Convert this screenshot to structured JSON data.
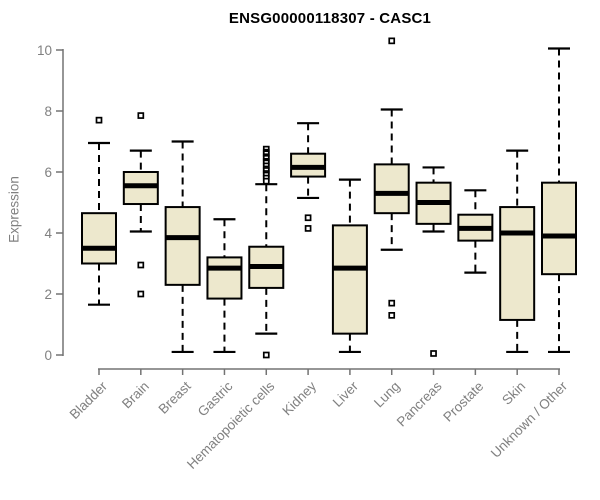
{
  "chart_data": {
    "type": "boxplot",
    "title": "ENSG00000118307 - CASC1",
    "ylabel": "Expression",
    "xlabel": "",
    "ylim": [
      0,
      10
    ],
    "yticks": [
      0,
      2,
      4,
      6,
      8,
      10
    ],
    "grid": false,
    "legend": false,
    "categories": [
      "Bladder",
      "Brain",
      "Breast",
      "Gastric",
      "Hematopoietic cells",
      "Kidney",
      "Liver",
      "Lung",
      "Pancreas",
      "Prostate",
      "Skin",
      "Unknown / Other"
    ],
    "boxes": [
      {
        "category": "Bladder",
        "whisker_low": 1.65,
        "q1": 3.0,
        "median": 3.5,
        "q3": 4.65,
        "whisker_high": 6.95,
        "outliers": [
          7.7
        ]
      },
      {
        "category": "Brain",
        "whisker_low": 4.05,
        "q1": 4.95,
        "median": 5.55,
        "q3": 6.0,
        "whisker_high": 6.7,
        "outliers": [
          7.85,
          2.95,
          2.0
        ]
      },
      {
        "category": "Breast",
        "whisker_low": 0.1,
        "q1": 2.3,
        "median": 3.85,
        "q3": 4.85,
        "whisker_high": 7.0,
        "outliers": []
      },
      {
        "category": "Gastric",
        "whisker_low": 0.1,
        "q1": 1.85,
        "median": 2.85,
        "q3": 3.2,
        "whisker_high": 4.45,
        "outliers": []
      },
      {
        "category": "Hematopoietic cells",
        "whisker_low": 0.7,
        "q1": 2.2,
        "median": 2.9,
        "q3": 3.55,
        "whisker_high": 5.6,
        "outliers": [
          6.75,
          6.65,
          6.6,
          6.5,
          6.45,
          6.35,
          6.3,
          6.2,
          6.1,
          6.05,
          5.95,
          5.9,
          5.8,
          5.7,
          0.0
        ]
      },
      {
        "category": "Kidney",
        "whisker_low": 5.15,
        "q1": 5.85,
        "median": 6.15,
        "q3": 6.6,
        "whisker_high": 7.6,
        "outliers": [
          4.5,
          4.15
        ]
      },
      {
        "category": "Liver",
        "whisker_low": 0.1,
        "q1": 0.7,
        "median": 2.85,
        "q3": 4.25,
        "whisker_high": 5.75,
        "outliers": []
      },
      {
        "category": "Lung",
        "whisker_low": 3.45,
        "q1": 4.65,
        "median": 5.3,
        "q3": 6.25,
        "whisker_high": 8.05,
        "outliers": [
          10.3,
          1.7,
          1.3
        ]
      },
      {
        "category": "Pancreas",
        "whisker_low": 4.05,
        "q1": 4.3,
        "median": 5.0,
        "q3": 5.65,
        "whisker_high": 6.15,
        "outliers": [
          0.05
        ]
      },
      {
        "category": "Prostate",
        "whisker_low": 2.7,
        "q1": 3.75,
        "median": 4.15,
        "q3": 4.6,
        "whisker_high": 5.4,
        "outliers": []
      },
      {
        "category": "Skin",
        "whisker_low": 0.1,
        "q1": 1.15,
        "median": 4.0,
        "q3": 4.85,
        "whisker_high": 6.7,
        "outliers": []
      },
      {
        "category": "Unknown / Other",
        "whisker_low": 0.1,
        "q1": 2.65,
        "median": 3.9,
        "q3": 5.65,
        "whisker_high": 10.05,
        "outliers": []
      }
    ],
    "style": {
      "box_fill": "#EDE8CD",
      "box_stroke": "#000000",
      "median_color": "#000000",
      "whisker_color": "#000000",
      "outlier_stroke": "#000000",
      "outlier_fill": "#FFFFFF",
      "axis_line_color": "#737373",
      "axis_text_color": "#808080",
      "title_color": "#000000",
      "background": "#FFFFFF"
    }
  }
}
